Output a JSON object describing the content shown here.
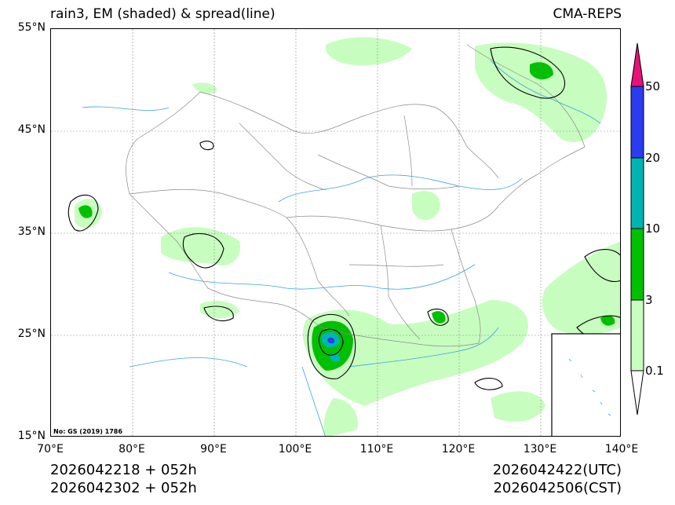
{
  "title": {
    "left": "rain3, EM (shaded) & spread(line)",
    "right": "CMA-REPS"
  },
  "axes": {
    "lat_labels": [
      "55°N",
      "45°N",
      "35°N",
      "25°N",
      "15°N"
    ],
    "lon_labels": [
      "70°E",
      "80°E",
      "90°E",
      "100°E",
      "110°E",
      "120°E",
      "130°E",
      "140°E"
    ]
  },
  "source_note": "No: GS (2019) 1786",
  "footer": {
    "init_utc": "2026042218  +  052h",
    "init_cst": "2026042302  +  052h",
    "valid_utc": "2026042422(UTC)",
    "valid_cst": "2026042506(CST)"
  },
  "colorbar": {
    "levels": [
      "0.1",
      "3",
      "10",
      "20",
      "50"
    ],
    "colors": [
      "#ffffff",
      "#c8fdc0",
      "#00c000",
      "#00b4b4",
      "#2a3cf0",
      "#e8107a"
    ]
  },
  "map_colors": {
    "light_green": "#c8fdc0",
    "green": "#00c000",
    "cyan": "#00b4b4",
    "blue": "#2a3cf0",
    "river": "#3aa3e0",
    "border": "#8a8a8a",
    "grid": "#888888"
  }
}
